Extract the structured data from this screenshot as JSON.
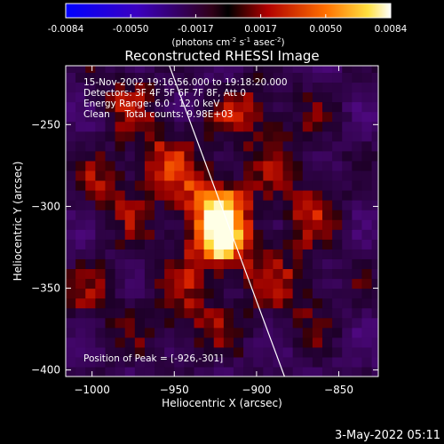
{
  "chart_data": {
    "type": "heatmap",
    "title": "Reconstructed RHESSI Image",
    "xlabel": "Heliocentric X (arcsec)",
    "ylabel": "Heliocentric Y (arcsec)",
    "xlim": [
      -1016,
      -826
    ],
    "ylim": [
      -404,
      -214
    ],
    "xticks": [
      -1000,
      -950,
      -900,
      -850
    ],
    "yticks": [
      -250,
      -300,
      -350,
      -400
    ],
    "grid": false,
    "colorbar": {
      "ticks": [
        "-0.0084",
        "-0.0050",
        "-0.0017",
        "0.0017",
        "0.0050",
        "0.0084"
      ],
      "units_prefix": "(photons cm",
      "units_exp1": "-2",
      "units_mid": " s",
      "units_exp2": "-1",
      "units_suffix": " asec",
      "units_exp3": "-2",
      "units_close": ")"
    },
    "info_lines": [
      "15-Nov-2002 19:16:56.000 to 19:18:20.000",
      "Detectors: 3F 4F 5F 6F 7F 8F, Att 0",
      "Energy Range: 6.0 - 12.0 keV",
      "Clean     Total counts: 9.98E+03"
    ],
    "peak_label": "Position of Peak = [-926,-301]",
    "peak": {
      "x": -926,
      "y": -301
    },
    "sources": [
      {
        "x": -926,
        "y": -301,
        "amp": 1.0
      },
      {
        "x": -921,
        "y": -326,
        "amp": 0.85
      },
      {
        "x": -958,
        "y": -270,
        "amp": 0.45
      },
      {
        "x": -992,
        "y": -290,
        "amp": 0.4
      },
      {
        "x": -870,
        "y": -300,
        "amp": 0.35
      },
      {
        "x": -875,
        "y": -350,
        "amp": 0.3
      },
      {
        "x": -900,
        "y": -242,
        "amp": 0.55
      },
      {
        "x": -1005,
        "y": -360,
        "amp": 0.35
      },
      {
        "x": -940,
        "y": -372,
        "amp": 0.4
      },
      {
        "x": -980,
        "y": -230,
        "amp": 0.35
      }
    ],
    "limb_line": {
      "start": [
        -953,
        -214
      ],
      "end": [
        -883,
        -404
      ]
    }
  },
  "footer_date": "3-May-2022 05:11"
}
